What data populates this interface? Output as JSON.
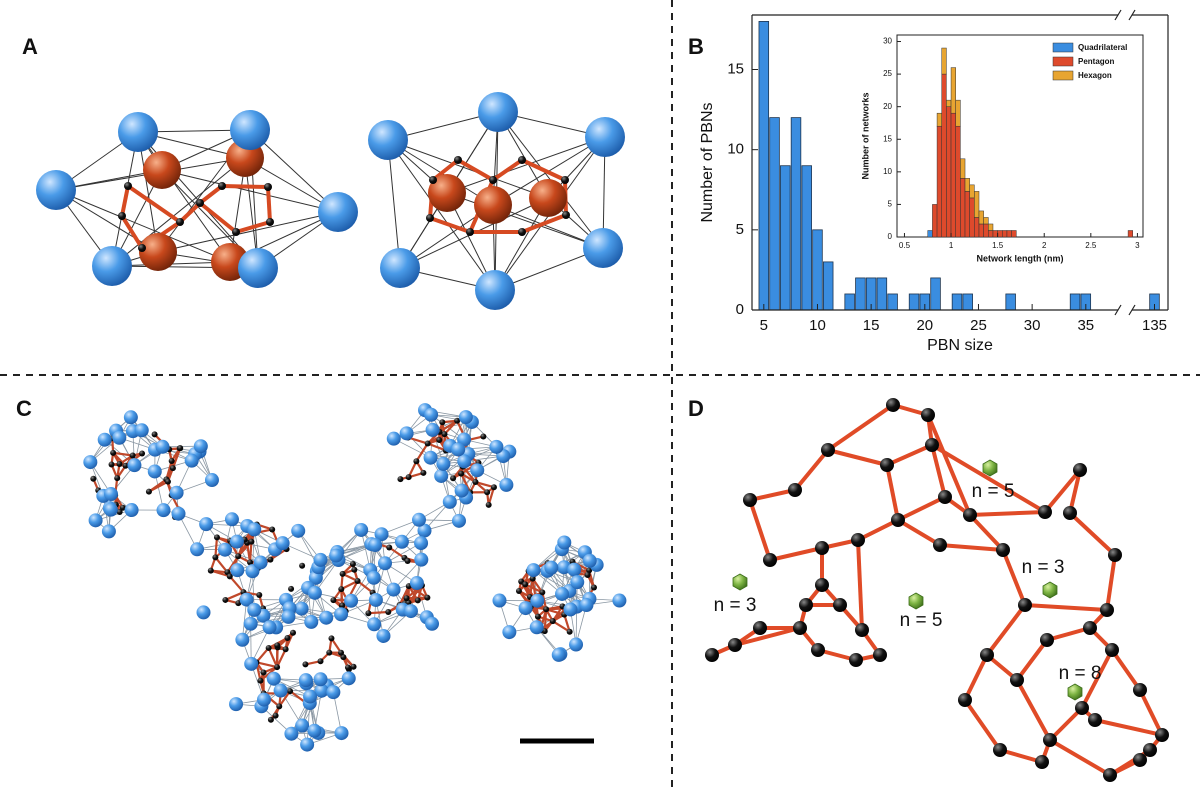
{
  "panels": {
    "a": {
      "label": "A"
    },
    "b": {
      "label": "B"
    },
    "c": {
      "label": "C"
    },
    "d": {
      "label": "D",
      "annotations": [
        "n = 3",
        "n = 5",
        "n = 5",
        "n = 3",
        "n = 8"
      ]
    }
  },
  "chart_data": [
    {
      "type": "bar",
      "x_label": "PBN size",
      "y_label": "Number of PBNs",
      "x": [
        5,
        6,
        7,
        8,
        9,
        10,
        11,
        13,
        14,
        15,
        16,
        17,
        19,
        20,
        21,
        23,
        24,
        28,
        34,
        35,
        135
      ],
      "values": [
        18,
        12,
        9,
        12,
        9,
        5,
        3,
        1,
        2,
        2,
        2,
        1,
        1,
        1,
        2,
        1,
        1,
        1,
        1,
        1,
        1
      ],
      "color": "#3a8de0",
      "xlim": [
        3.9,
        135.6
      ],
      "axis_break": [
        38,
        134
      ],
      "ylim": [
        0,
        18.4
      ],
      "xticks": [
        5,
        10,
        15,
        20,
        25,
        30,
        35,
        135
      ],
      "yticks": [
        0,
        5,
        10,
        15
      ]
    },
    {
      "type": "histogram",
      "stacked": true,
      "x_label": "Network length (nm)",
      "y_label": "Number of networks",
      "bins": [
        0.75,
        0.8,
        0.85,
        0.9,
        0.95,
        1.0,
        1.05,
        1.1,
        1.15,
        1.2,
        1.25,
        1.3,
        1.35,
        1.4,
        1.45,
        1.5,
        1.55,
        1.6,
        1.65,
        1.7,
        2.9,
        2.95
      ],
      "series": [
        {
          "name": "Quadrilateral",
          "color": "#3a8de0",
          "values": [
            1,
            0,
            0,
            0,
            0,
            0,
            0,
            0,
            0,
            0,
            0,
            0,
            0,
            0,
            0,
            0,
            0,
            0,
            0,
            0,
            0
          ]
        },
        {
          "name": "Pentagon",
          "color": "#de4a2c",
          "values": [
            0,
            5,
            17,
            25,
            20,
            19,
            17,
            9,
            7,
            6,
            3,
            2,
            2,
            1,
            1,
            1,
            1,
            1,
            1,
            0,
            1
          ]
        },
        {
          "name": "Hexagon",
          "color": "#e8a531",
          "values": [
            0,
            0,
            2,
            4,
            1,
            7,
            4,
            3,
            2,
            2,
            4,
            2,
            1,
            1,
            0,
            0,
            0,
            0,
            0,
            0,
            0
          ]
        }
      ],
      "xlim": [
        0.42,
        3.06
      ],
      "ylim": [
        0,
        31
      ],
      "xticks": [
        0.5,
        1,
        1.5,
        2,
        2.5,
        3
      ],
      "yticks": [
        0,
        5,
        10,
        15,
        20,
        25,
        30
      ],
      "legend": "upper right"
    }
  ]
}
